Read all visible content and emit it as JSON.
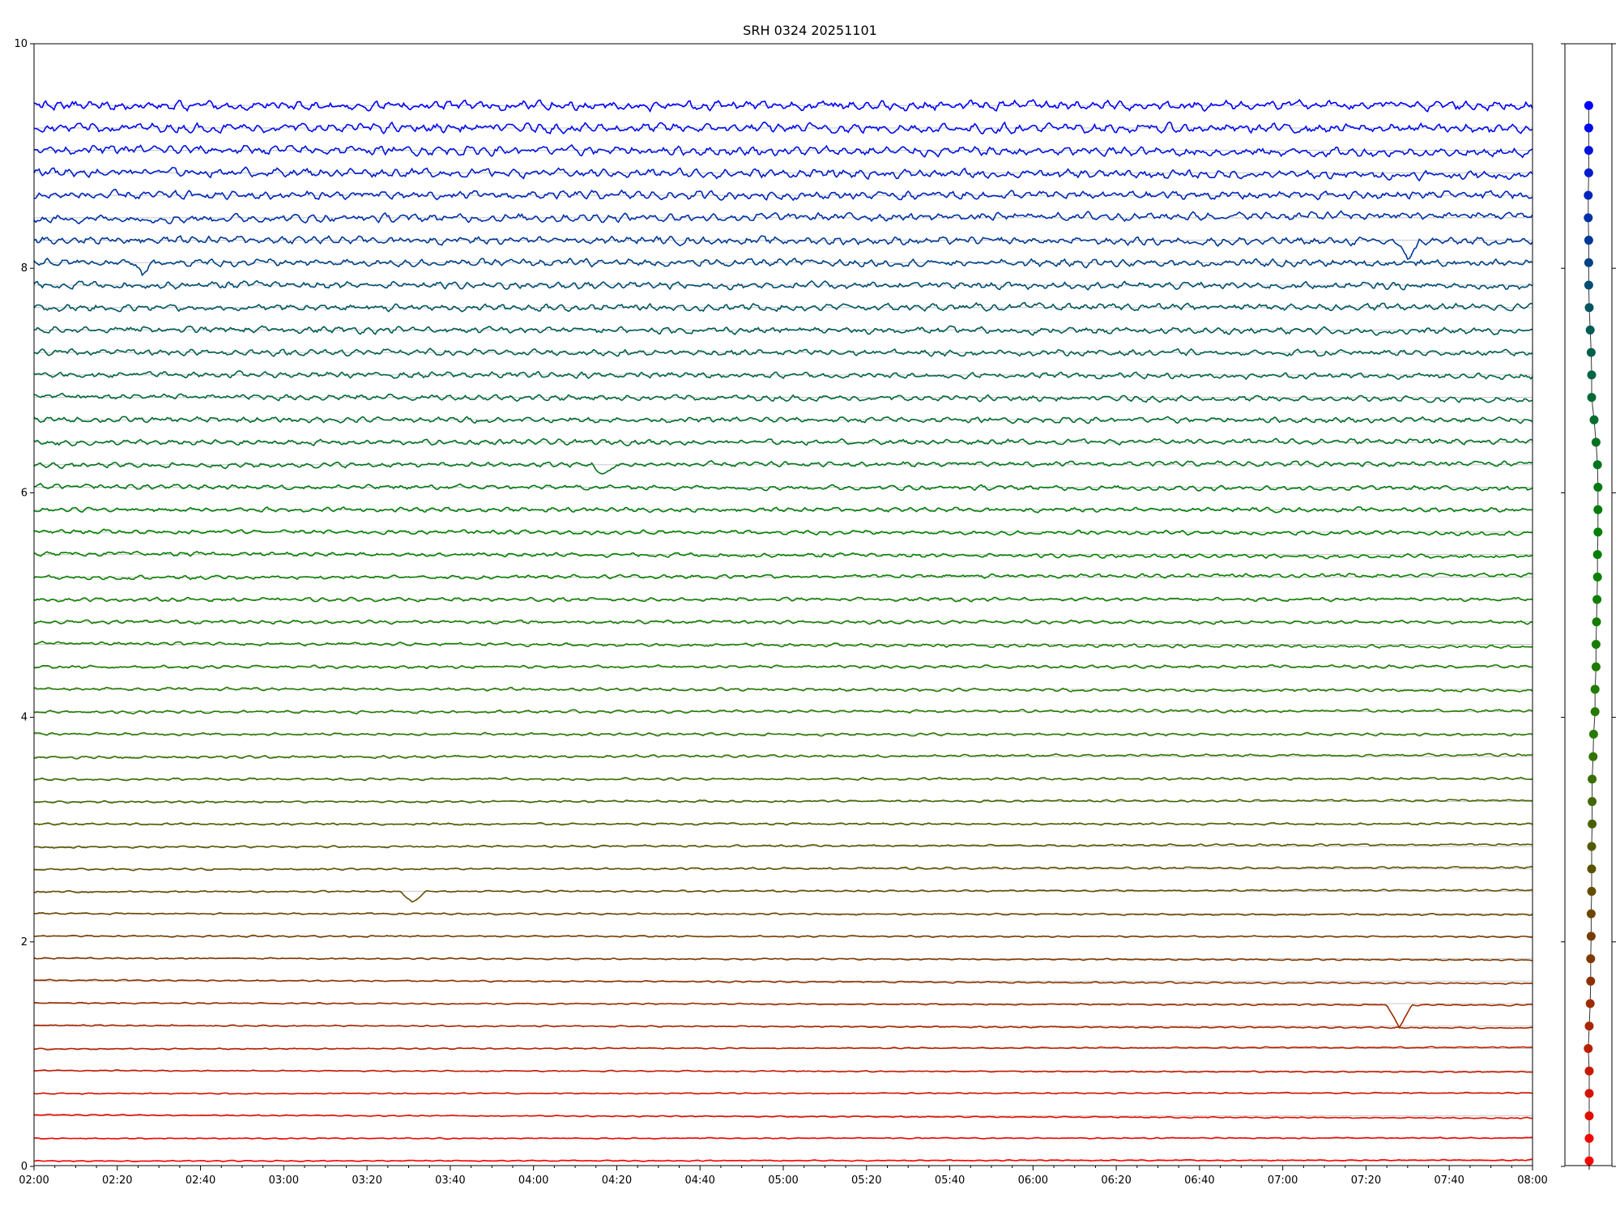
{
  "chart_data": [
    {
      "type": "line",
      "title": "SRH 0324 20251101",
      "xlabel": "",
      "ylabel": "",
      "xlim": [
        "02:00",
        "08:00"
      ],
      "ylim": [
        0,
        10
      ],
      "x_ticks": [
        "02:00",
        "02:20",
        "02:40",
        "03:00",
        "03:20",
        "03:40",
        "04:00",
        "04:20",
        "04:40",
        "05:00",
        "05:20",
        "05:40",
        "06:00",
        "06:20",
        "06:40",
        "07:00",
        "07:20",
        "07:40",
        "08:00"
      ],
      "y_ticks": [
        "0",
        "2",
        "4",
        "6",
        "8",
        "10"
      ],
      "grid": "horizontal lines at each trace baseline",
      "legend": "none",
      "color_gradient": [
        "#ff0000",
        "#7a3a00",
        "#2a7a00",
        "#008000",
        "#005a5a",
        "#0000ff"
      ],
      "trace_count": 48,
      "baselines": [
        0.05,
        0.25,
        0.45,
        0.65,
        0.85,
        1.05,
        1.25,
        1.45,
        1.65,
        1.85,
        2.05,
        2.25,
        2.45,
        2.65,
        2.85,
        3.05,
        3.25,
        3.45,
        3.65,
        3.85,
        4.05,
        4.25,
        4.45,
        4.65,
        4.85,
        5.05,
        5.25,
        5.45,
        5.65,
        5.85,
        6.05,
        6.25,
        6.45,
        6.65,
        6.85,
        7.05,
        7.25,
        7.45,
        7.65,
        7.85,
        8.05,
        8.25,
        8.45,
        8.65,
        8.85,
        9.05,
        9.25,
        9.45
      ],
      "annotations": [
        {
          "desc": "negative spike",
          "x": "07:28",
          "trace_baseline": 1.45,
          "y_min": 1.25
        },
        {
          "desc": "dip",
          "x": "02:26",
          "trace_baseline": 8.05,
          "y_min": 7.95
        },
        {
          "desc": "dip",
          "x": "07:30",
          "trace_baseline": 8.25,
          "y_min": 8.1
        },
        {
          "desc": "dip",
          "x": "04:17",
          "trace_baseline": 6.25,
          "y_min": 6.15
        },
        {
          "desc": "spike",
          "x": "03:31",
          "trace_baseline": 2.45,
          "y_min": 2.35
        }
      ]
    },
    {
      "type": "scatter",
      "title": "",
      "ylim": [
        0,
        10
      ],
      "points_y": [
        0.05,
        0.25,
        0.45,
        0.65,
        0.85,
        1.05,
        1.25,
        1.45,
        1.65,
        1.85,
        2.05,
        2.25,
        2.45,
        2.65,
        2.85,
        3.05,
        3.25,
        3.45,
        3.65,
        3.85,
        4.05,
        4.25,
        4.45,
        4.65,
        4.85,
        5.05,
        5.25,
        5.45,
        5.65,
        5.85,
        6.05,
        6.25,
        6.45,
        6.65,
        6.85,
        7.05,
        7.25,
        7.45,
        7.65,
        7.85,
        8.05,
        8.25,
        8.45,
        8.65,
        8.85,
        9.05,
        9.25,
        9.45
      ],
      "points_x": [
        0.0,
        0.0,
        0.0,
        0.0,
        0.0,
        -0.02,
        0.0,
        0.02,
        0.03,
        0.03,
        0.04,
        0.04,
        0.05,
        0.05,
        0.05,
        0.06,
        0.06,
        0.06,
        0.08,
        0.09,
        0.12,
        0.12,
        0.14,
        0.14,
        0.15,
        0.16,
        0.17,
        0.17,
        0.18,
        0.18,
        0.18,
        0.17,
        0.14,
        0.1,
        0.05,
        0.05,
        0.04,
        0.02,
        0.0,
        -0.01,
        -0.01,
        -0.01,
        -0.02,
        -0.02,
        -0.01,
        -0.01,
        -0.01,
        -0.01
      ]
    }
  ]
}
